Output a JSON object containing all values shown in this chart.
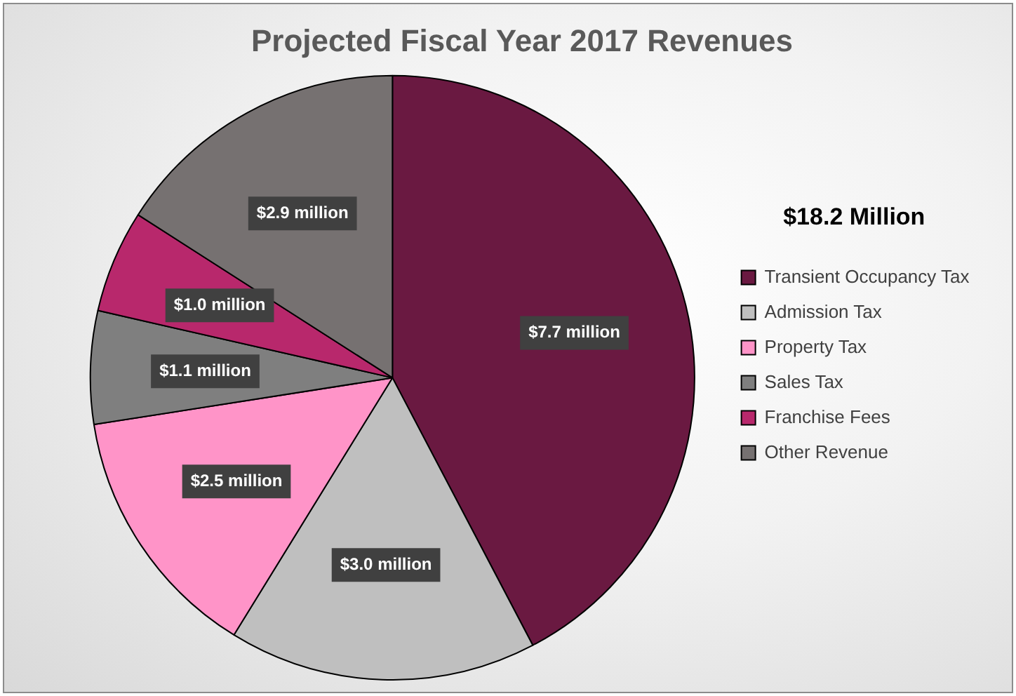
{
  "chart_data": {
    "type": "pie",
    "title": "Projected Fiscal Year 2017 Revenues",
    "legend_title": "$18.2 Million",
    "categories": [
      "Transient Occupancy Tax",
      "Admission Tax",
      "Property Tax",
      "Sales Tax",
      "Franchise Fees",
      "Other Revenue"
    ],
    "values": [
      7.7,
      3.0,
      2.5,
      1.1,
      1.0,
      2.9
    ],
    "colors": [
      "#6a1941",
      "#bfbfbf",
      "#ff94c8",
      "#7f7f7f",
      "#b8286c",
      "#767171"
    ],
    "value_labels": [
      "$7.7 million",
      "$3.0 million",
      "$2.5 million",
      "$1.1 million",
      "$1.0 million",
      "$2.9 million"
    ],
    "legend": "right"
  }
}
